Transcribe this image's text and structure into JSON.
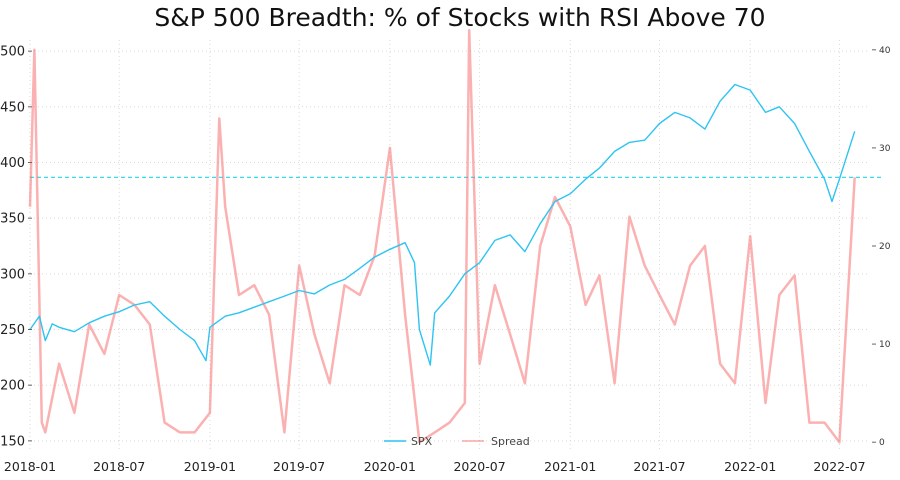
{
  "chart_data": {
    "type": "line",
    "title": "S&P 500 Breadth: % of Stocks with RSI Above 70",
    "xlabel": "",
    "ylabel": "",
    "x_ticks": [
      "2018-01",
      "2018-07",
      "2019-01",
      "2019-07",
      "2020-01",
      "2020-07",
      "2021-01",
      "2021-07",
      "2022-01",
      "2022-07"
    ],
    "xlim": [
      "2018-01",
      "2022-09"
    ],
    "ylim_left": [
      140,
      510
    ],
    "ylim_right": [
      -1,
      41
    ],
    "y_ticks_left": [
      150,
      200,
      250,
      300,
      350,
      400,
      450,
      500
    ],
    "y_ticks_right": [
      0,
      10,
      20,
      30,
      40
    ],
    "grid": true,
    "legend": {
      "position": "bottom-center",
      "entries": [
        "SPX",
        "Spread"
      ]
    },
    "reference_line": {
      "axis": "right",
      "value": 27,
      "style": "dashed",
      "color": "#22d3ee"
    },
    "colors": {
      "spx": "#2ec4f1",
      "spread": "#f87171"
    },
    "series": [
      {
        "name": "SPX",
        "axis": "left",
        "x": [
          "2018-01",
          "2018-01-20",
          "2018-02",
          "2018-02-15",
          "2018-03",
          "2018-04",
          "2018-05",
          "2018-06",
          "2018-07",
          "2018-08",
          "2018-09",
          "2018-10",
          "2018-11",
          "2018-12",
          "2018-12-24",
          "2019-01",
          "2019-02",
          "2019-03",
          "2019-04",
          "2019-05",
          "2019-06",
          "2019-07",
          "2019-08",
          "2019-09",
          "2019-10",
          "2019-11",
          "2019-12",
          "2020-01",
          "2020-02",
          "2020-02-20",
          "2020-03",
          "2020-03-23",
          "2020-04",
          "2020-05",
          "2020-06",
          "2020-07",
          "2020-08",
          "2020-09",
          "2020-10",
          "2020-11",
          "2020-12",
          "2021-01",
          "2021-02",
          "2021-03",
          "2021-04",
          "2021-05",
          "2021-06",
          "2021-07",
          "2021-08",
          "2021-09",
          "2021-10",
          "2021-11",
          "2021-12",
          "2022-01",
          "2022-02",
          "2022-03",
          "2022-04",
          "2022-05",
          "2022-06",
          "2022-06-16",
          "2022-07",
          "2022-08"
        ],
        "values": [
          250,
          262,
          240,
          255,
          252,
          248,
          256,
          262,
          266,
          272,
          275,
          262,
          250,
          240,
          222,
          252,
          262,
          265,
          270,
          275,
          280,
          285,
          282,
          290,
          295,
          305,
          315,
          322,
          328,
          310,
          250,
          218,
          265,
          280,
          300,
          310,
          330,
          335,
          320,
          345,
          365,
          372,
          385,
          395,
          410,
          418,
          420,
          435,
          445,
          440,
          430,
          455,
          470,
          465,
          445,
          450,
          435,
          410,
          385,
          365,
          385,
          428
        ]
      },
      {
        "name": "Spread",
        "axis": "right",
        "x": [
          "2018-01",
          "2018-01-10",
          "2018-01-25",
          "2018-02",
          "2018-03",
          "2018-04",
          "2018-05",
          "2018-06",
          "2018-07",
          "2018-08",
          "2018-09",
          "2018-10",
          "2018-11",
          "2018-12",
          "2019-01",
          "2019-01-20",
          "2019-02",
          "2019-03",
          "2019-04",
          "2019-05",
          "2019-06",
          "2019-07",
          "2019-08",
          "2019-09",
          "2019-10",
          "2019-11",
          "2019-12",
          "2020-01",
          "2020-02",
          "2020-03",
          "2020-04",
          "2020-05",
          "2020-06",
          "2020-06-10",
          "2020-07",
          "2020-08",
          "2020-09",
          "2020-10",
          "2020-11",
          "2020-12",
          "2021-01",
          "2021-02",
          "2021-03",
          "2021-04",
          "2021-05",
          "2021-06",
          "2021-07",
          "2021-08",
          "2021-09",
          "2021-10",
          "2021-11",
          "2021-12",
          "2022-01",
          "2022-02",
          "2022-03",
          "2022-04",
          "2022-05",
          "2022-06",
          "2022-07",
          "2022-08"
        ],
        "values": [
          24,
          40,
          2,
          1,
          8,
          3,
          12,
          9,
          15,
          14,
          12,
          2,
          1,
          1,
          3,
          33,
          24,
          15,
          16,
          13,
          1,
          18,
          11,
          6,
          16,
          15,
          19,
          30,
          13,
          0,
          1,
          2,
          4,
          42,
          8,
          16,
          11,
          6,
          20,
          25,
          22,
          14,
          17,
          6,
          23,
          18,
          15,
          12,
          18,
          20,
          8,
          6,
          21,
          4,
          15,
          17,
          2,
          2,
          0,
          27
        ]
      }
    ]
  }
}
